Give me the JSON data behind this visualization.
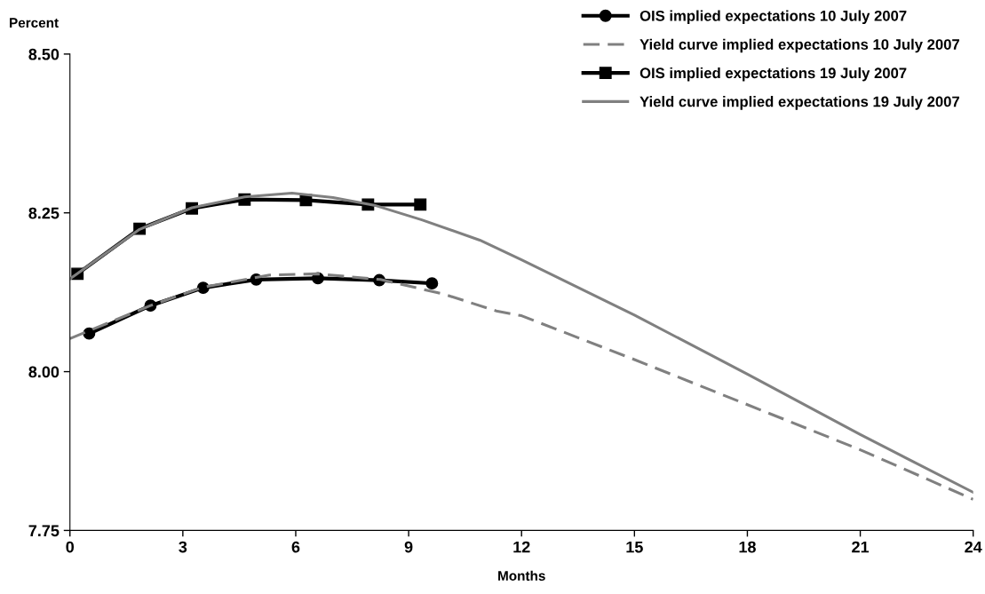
{
  "chart_data": {
    "type": "line",
    "ylabel": "Percent",
    "xlabel": "Months",
    "xlim": [
      0,
      24
    ],
    "xticks": [
      0,
      3,
      6,
      9,
      12,
      15,
      18,
      21,
      24
    ],
    "ylim": [
      7.75,
      8.5
    ],
    "yticks": [
      {
        "value": 7.75,
        "label": "7.75"
      },
      {
        "value": 8.0,
        "label": "8.00"
      },
      {
        "value": 8.25,
        "label": "8.25"
      },
      {
        "value": 8.5,
        "label": "8.50"
      }
    ],
    "grid": false,
    "legend": "top right",
    "series": [
      {
        "name": "OIS implied expectations 10 July 2007",
        "color": "#000000",
        "marker": "circle",
        "line_style": "solid",
        "x": [
          0.51,
          2.14,
          3.54,
          4.95,
          6.59,
          8.22,
          9.62
        ],
        "values": [
          8.06,
          8.104,
          8.132,
          8.145,
          8.147,
          8.144,
          8.139
        ]
      },
      {
        "name": "Yield curve implied expectations 10 July 2007",
        "color": "#808080",
        "marker": "none",
        "line_style": "dashed",
        "x": [
          0,
          2.14,
          3.54,
          5.3,
          6.57,
          8.25,
          9.94,
          11.36,
          12,
          15,
          18,
          21,
          24
        ],
        "values": [
          8.052,
          8.104,
          8.133,
          8.152,
          8.154,
          8.145,
          8.122,
          8.095,
          8.088,
          8.019,
          7.948,
          7.877,
          7.799
        ]
      },
      {
        "name": "OIS implied expectations 19 July 2007",
        "color": "#000000",
        "marker": "square",
        "line_style": "solid",
        "x": [
          0.2,
          1.85,
          3.24,
          4.64,
          6.27,
          7.92,
          9.31
        ],
        "values": [
          8.154,
          8.225,
          8.257,
          8.271,
          8.27,
          8.263,
          8.263
        ]
      },
      {
        "name": "Yield curve implied expectations 19 July 2007",
        "color": "#808080",
        "marker": "none",
        "line_style": "solid",
        "x": [
          0,
          1.85,
          3.24,
          4.64,
          5.9,
          6.99,
          8.09,
          9.35,
          10.89,
          12,
          15,
          18,
          21,
          24
        ],
        "values": [
          8.146,
          8.224,
          8.258,
          8.275,
          8.281,
          8.274,
          8.262,
          8.239,
          8.207,
          8.176,
          8.089,
          7.996,
          7.901,
          7.81
        ]
      }
    ]
  }
}
